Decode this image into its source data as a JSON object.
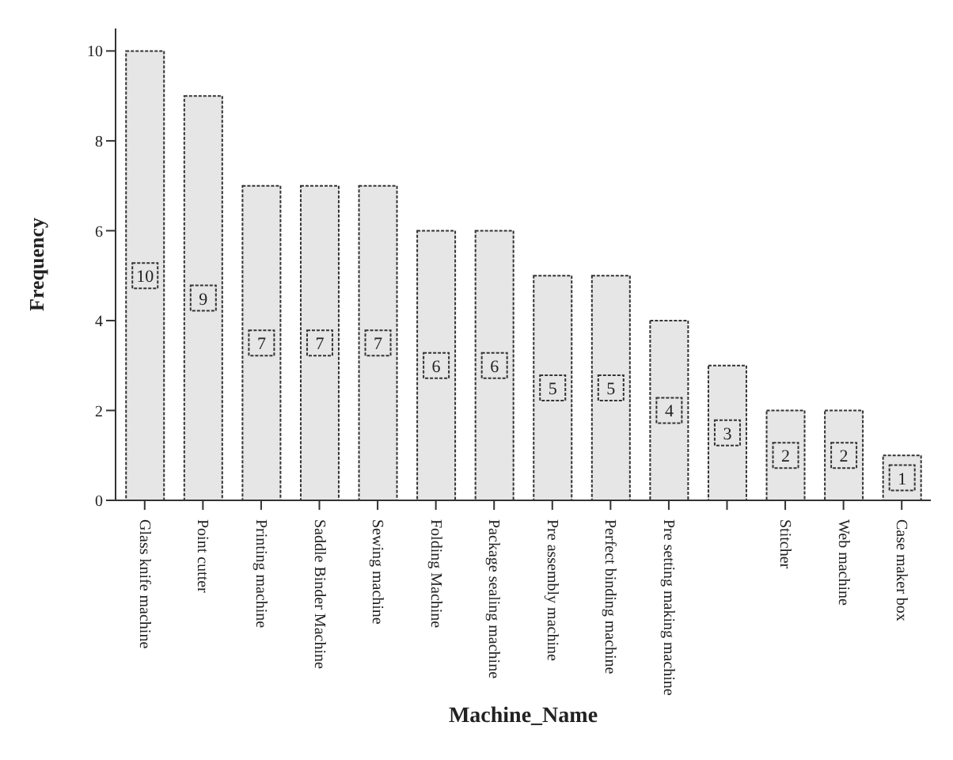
{
  "chart_data": {
    "type": "bar",
    "xlabel": "Machine_Name",
    "ylabel": "Frequency",
    "categories": [
      "Glass knife machine",
      "Point cutter",
      "Printing machine",
      "Saddle Binder Machine",
      "Sewing machine",
      "Folding Machine",
      "Package sealing machine",
      "Pre assembly machine",
      "Perfect binding machine",
      "Pre setting making machine",
      null,
      "Stitcher",
      "Web machine",
      "Case maker box"
    ],
    "values": [
      10,
      9,
      7,
      7,
      7,
      6,
      6,
      5,
      5,
      4,
      3,
      2,
      2,
      1
    ],
    "color": "#e6e6e6",
    "ylim": [
      0,
      10.5
    ],
    "yticks": [
      0,
      2,
      4,
      6,
      8,
      10
    ],
    "grid": false,
    "data_labels": true
  }
}
